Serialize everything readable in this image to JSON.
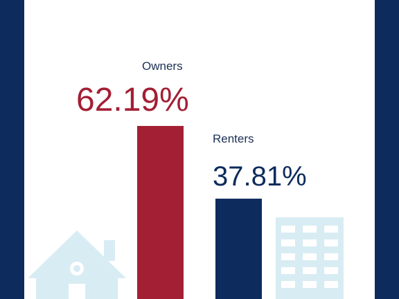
{
  "chart_data": {
    "type": "bar",
    "categories": [
      "Owners",
      "Renters"
    ],
    "values": [
      62.19,
      37.81
    ],
    "value_labels": [
      "62.19%",
      "37.81%"
    ],
    "colors": [
      "#a31f34",
      "#0d2b5c"
    ]
  }
}
